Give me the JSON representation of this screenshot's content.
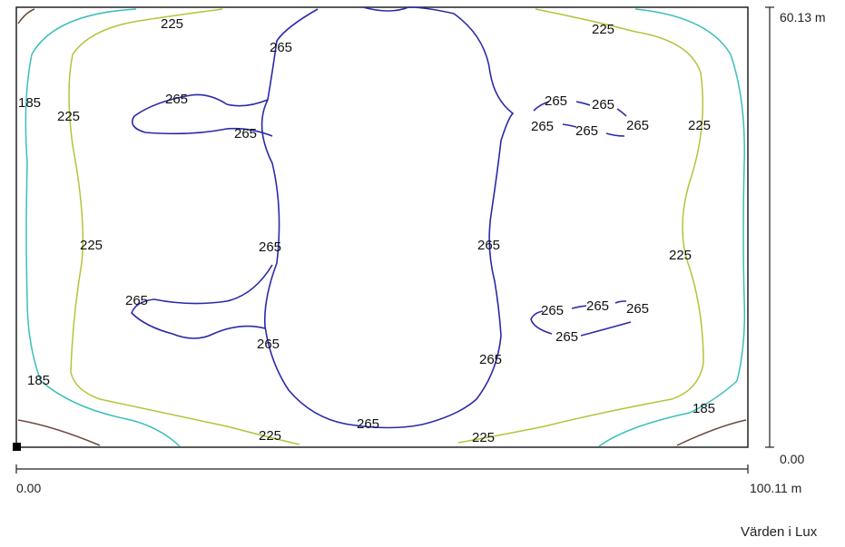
{
  "diagram": {
    "kind": "isolux contour plot",
    "colors": {
      "frame": "#222222",
      "c265": "#2a2aa8",
      "c225": "#b7c23a",
      "c185": "#3bbfb7",
      "corner": "#6b4a3a"
    },
    "labels": {
      "c265": "265",
      "c225": "225",
      "c185": "185"
    },
    "y_axis": {
      "max_label": "60.13 m",
      "min_label": "0.00"
    },
    "x_axis": {
      "min_label": "0.00",
      "max_label": "100.11 m"
    },
    "unit_note": "Värden i Lux"
  }
}
